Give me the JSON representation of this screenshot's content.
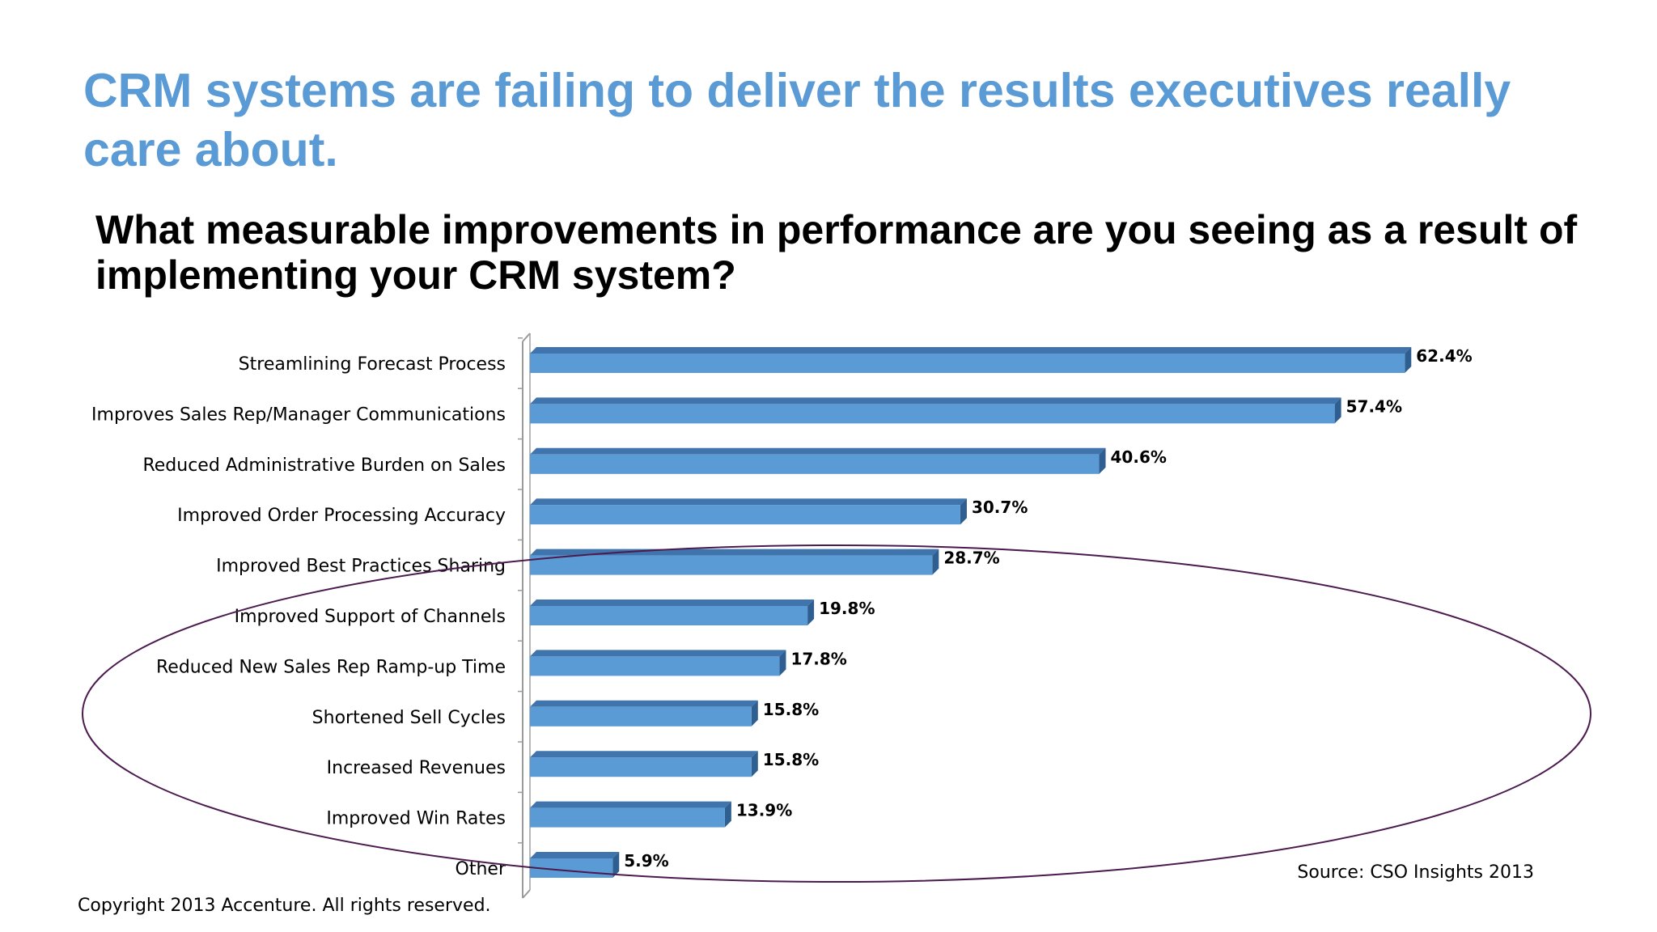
{
  "slide": {
    "headline": "CRM systems are failing to deliver the results executives really care about.",
    "source": "Source: CSO Insights 2013",
    "copyright": "Copyright 2013 Accenture. All rights reserved."
  },
  "colors": {
    "headline": "#5b9bd5",
    "bar_front": "#5b9bd5",
    "bar_top": "#3f74ad",
    "bar_side": "#2f5f91",
    "ellipse": "#4b1a4e"
  },
  "chart_data": {
    "type": "bar",
    "orientation": "horizontal",
    "title": "What measurable improvements in performance are you seeing as a result of implementing your CRM system?",
    "categories": [
      "Streamlining Forecast Process",
      "Improves Sales Rep/Manager Communications",
      "Reduced Administrative Burden on Sales",
      "Improved Order Processing Accuracy",
      "Improved Best Practices Sharing",
      "Improved Support of Channels",
      "Reduced New Sales Rep Ramp-up Time",
      "Shortened Sell Cycles",
      "Increased Revenues",
      "Improved Win Rates",
      "Other"
    ],
    "values": [
      62.4,
      57.4,
      40.6,
      30.7,
      28.7,
      19.8,
      17.8,
      15.8,
      15.8,
      13.9,
      5.9
    ],
    "value_labels": [
      "62.4%",
      "57.4%",
      "40.6%",
      "30.7%",
      "28.7%",
      "19.8%",
      "17.8%",
      "15.8%",
      "15.8%",
      "13.9%",
      "5.9%"
    ],
    "unit": "%",
    "xlim": [
      0,
      64
    ],
    "grid": false,
    "style": "3D bars",
    "annotation": "ellipse around Improved Best Practices Sharing through Other"
  }
}
